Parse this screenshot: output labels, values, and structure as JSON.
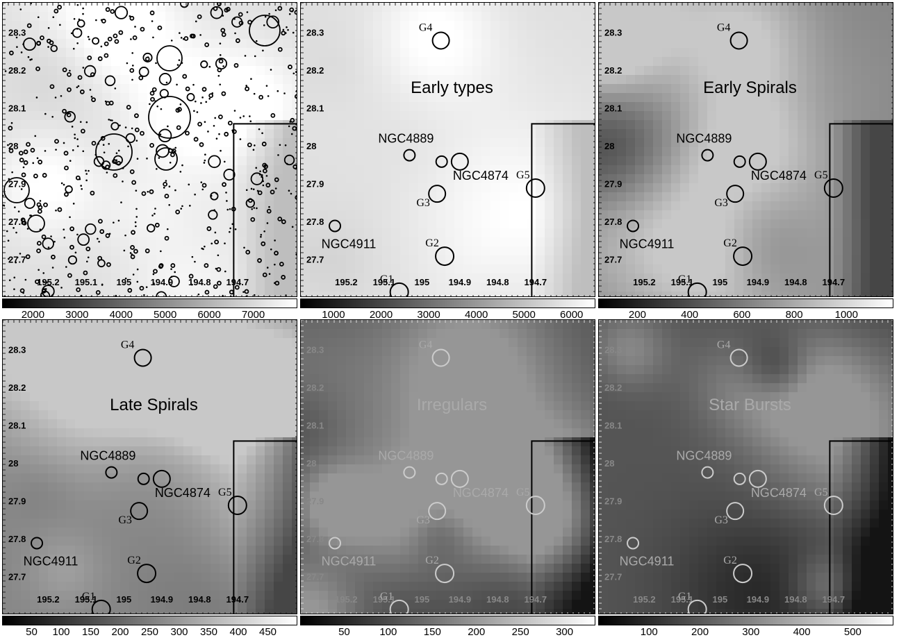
{
  "panels": [
    {
      "id": "all",
      "title": "",
      "palette": "light",
      "label_tone": "dark",
      "show_points": true,
      "cbar_ticks": [
        "2000",
        "3000",
        "4000",
        "5000",
        "6000",
        "7000"
      ],
      "cbar_range": [
        1300,
        8000
      ]
    },
    {
      "id": "early-types",
      "title": "Early types",
      "palette": "light",
      "label_tone": "dark",
      "show_points": false,
      "cbar_ticks": [
        "1000",
        "2000",
        "3000",
        "4000",
        "5000",
        "6000"
      ],
      "cbar_range": [
        300,
        6500
      ]
    },
    {
      "id": "early-spirals",
      "title": "Early Spirals",
      "palette": "mid",
      "label_tone": "dark",
      "show_points": false,
      "cbar_ticks": [
        "200",
        "400",
        "600",
        "800",
        "1000"
      ],
      "cbar_range": [
        50,
        1180
      ]
    },
    {
      "id": "late-spirals",
      "title": "Late Spirals",
      "palette": "mid",
      "label_tone": "dark",
      "show_points": false,
      "cbar_ticks": [
        "50",
        "100",
        "150",
        "200",
        "250",
        "300",
        "350",
        "400",
        "450"
      ],
      "cbar_range": [
        0,
        500
      ]
    },
    {
      "id": "irregulars",
      "title": "Irregulars",
      "palette": "dark",
      "label_tone": "light",
      "show_points": false,
      "cbar_ticks": [
        "50",
        "100",
        "150",
        "200",
        "250",
        "300"
      ],
      "cbar_range": [
        0,
        335
      ]
    },
    {
      "id": "star-bursts",
      "title": "Star Bursts",
      "palette": "dark",
      "label_tone": "light",
      "show_points": false,
      "cbar_ticks": [
        "100",
        "200",
        "300",
        "400",
        "500"
      ],
      "cbar_range": [
        0,
        580
      ]
    }
  ],
  "ra_ticks": [
    "195.2",
    "195.1",
    "195",
    "194.9",
    "194.8",
    "194.7"
  ],
  "dec_ticks": [
    "28.3",
    "28.2",
    "28.1",
    "28",
    "27.9",
    "27.8",
    "27.7"
  ],
  "ra_range": [
    195.32,
    194.54
  ],
  "dec_range": [
    27.6,
    28.38
  ],
  "objects": [
    {
      "name": "G4",
      "ra": 194.95,
      "dec": 28.28
    },
    {
      "name": "NGC4889",
      "ra": 195.033,
      "dec": 27.977
    },
    {
      "name": "",
      "ra": 194.948,
      "dec": 27.96
    },
    {
      "name": "NGC4874",
      "ra": 194.9,
      "dec": 27.96
    },
    {
      "name": "G5",
      "ra": 194.7,
      "dec": 27.89
    },
    {
      "name": "G3",
      "ra": 194.96,
      "dec": 27.875
    },
    {
      "name": "NGC4911",
      "ra": 195.23,
      "dec": 27.79
    },
    {
      "name": "G2",
      "ra": 194.94,
      "dec": 27.71
    },
    {
      "name": "G1",
      "ra": 195.06,
      "dec": 27.615
    }
  ],
  "box": {
    "ra_left": 194.71,
    "dec_top": 28.06
  }
}
